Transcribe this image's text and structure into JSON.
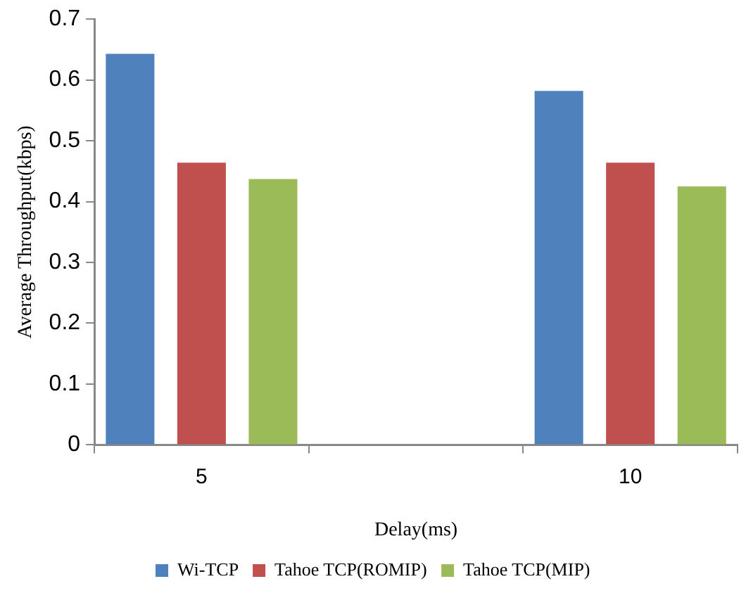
{
  "chart_data": {
    "type": "bar",
    "xlabel": "Delay(ms)",
    "ylabel": "Average Throughput(kbps)",
    "categories": [
      "5",
      null,
      "10"
    ],
    "series": [
      {
        "name": "Wi-TCP",
        "color": "#4f81bd",
        "values": [
          0.643,
          null,
          0.582
        ]
      },
      {
        "name": "Tahoe TCP(ROMIP)",
        "color": "#c0504d",
        "values": [
          0.464,
          null,
          0.464
        ]
      },
      {
        "name": "Tahoe TCP(MIP)",
        "color": "#9bbb59",
        "values": [
          0.437,
          null,
          0.425
        ]
      }
    ],
    "ylim": [
      0,
      0.7
    ],
    "yticks": [
      0,
      0.1,
      0.2,
      0.3,
      0.4,
      0.5,
      0.6,
      0.7
    ],
    "grid": false,
    "legend": "bottom"
  }
}
